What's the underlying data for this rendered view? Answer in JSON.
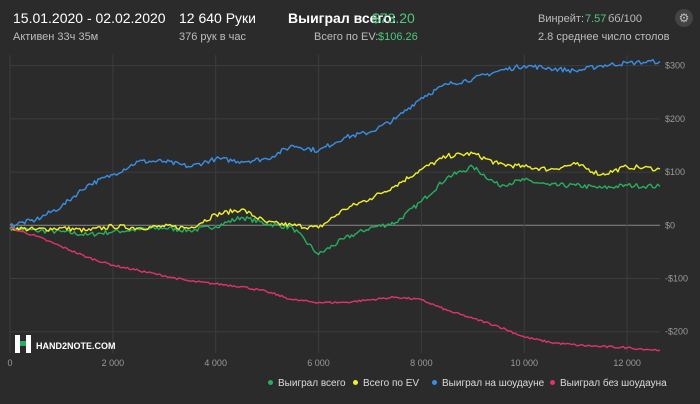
{
  "header": {
    "date_range": "15.01.2020 - 02.02.2020",
    "active_time": "Активен 33ч 35м",
    "hands": "12 640 Руки",
    "hands_per_hour": "376 рук в час",
    "won_total_label": "Выиграл всего:",
    "won_total_value": "$73.20",
    "ev_total_label": "Всего по EV:",
    "ev_total_value": "$106.26",
    "winrate_label": "Винрейт:",
    "winrate_value": "7.57",
    "winrate_unit": "бб/100",
    "avg_tables": "2.8 среднее число столов"
  },
  "logo": {
    "text": "HAND2NOTE.COM"
  },
  "colors": {
    "won_total": "#27ae60",
    "ev": "#f1f129",
    "showdown": "#3a8ee6",
    "non_showdown": "#e0336a",
    "accent_green": "#4cc97b"
  },
  "chart_data": {
    "type": "line",
    "xlabel": "",
    "ylabel": "",
    "xlim": [
      0,
      12640
    ],
    "ylim": [
      -240,
      320
    ],
    "grid": true,
    "legend_position": "bottom-right",
    "x_ticks": [
      0,
      2000,
      4000,
      6000,
      8000,
      10000,
      12000
    ],
    "x_tick_labels": [
      "0",
      "2 000",
      "4 000",
      "6 000",
      "8 000",
      "10 000",
      "12 000"
    ],
    "y_ticks": [
      300,
      200,
      100,
      0,
      -100,
      -200
    ],
    "y_tick_labels": [
      "$300",
      "$200",
      "$100",
      "$0",
      "-$100",
      "-$200"
    ],
    "x": [
      0,
      500,
      1000,
      1500,
      2000,
      2500,
      3000,
      3500,
      4000,
      4500,
      5000,
      5500,
      6000,
      6500,
      7000,
      7500,
      8000,
      8500,
      9000,
      9500,
      10000,
      10500,
      11000,
      11500,
      12000,
      12640
    ],
    "series": [
      {
        "name": "Выиграл всего",
        "color_key": "won_total",
        "values": [
          -5,
          -10,
          -12,
          -18,
          -12,
          -8,
          -5,
          -10,
          -2,
          15,
          3,
          -5,
          -55,
          -25,
          -5,
          5,
          45,
          90,
          110,
          75,
          85,
          75,
          75,
          70,
          75,
          73
        ]
      },
      {
        "name": "Всего по EV",
        "color_key": "ev",
        "values": [
          -5,
          -8,
          -5,
          -10,
          -2,
          -5,
          -2,
          -5,
          20,
          30,
          5,
          0,
          -5,
          30,
          50,
          75,
          105,
          130,
          135,
          115,
          110,
          105,
          115,
          95,
          110,
          106
        ]
      },
      {
        "name": "Выиграл на шоудауне",
        "color_key": "showdown",
        "values": [
          0,
          10,
          35,
          75,
          95,
          120,
          120,
          110,
          125,
          120,
          125,
          150,
          140,
          165,
          175,
          200,
          240,
          265,
          275,
          290,
          300,
          295,
          290,
          300,
          305,
          308
        ]
      },
      {
        "name": "Выиграл без шоудауна",
        "color_key": "non_showdown",
        "values": [
          -5,
          -20,
          -40,
          -60,
          -75,
          -85,
          -95,
          -105,
          -110,
          -115,
          -125,
          -140,
          -145,
          -145,
          -140,
          -135,
          -140,
          -160,
          -175,
          -190,
          -210,
          -220,
          -225,
          -228,
          -230,
          -235
        ]
      }
    ]
  }
}
